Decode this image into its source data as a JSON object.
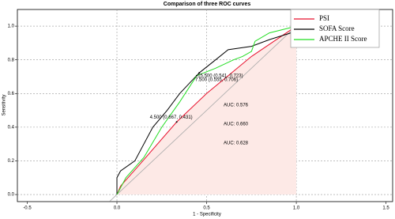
{
  "chart_data": {
    "type": "line",
    "title": "Comparison of three ROC curves",
    "x_label": "1 - Specificity",
    "y_label": "Sensitivity",
    "xlim": [
      -0.555,
      1.537
    ],
    "ylim": [
      -0.042,
      1.099
    ],
    "xticks": [
      -0.5,
      {
        "value": 0,
        "label": "0.0"
      },
      0.5,
      {
        "value": 1,
        "label": "1.0"
      },
      1.5
    ],
    "yticks": [
      {
        "value": 0,
        "label": "0.0"
      },
      0.2,
      0.4,
      0.6,
      0.8,
      {
        "value": 1,
        "label": "1.0"
      }
    ],
    "grid": true,
    "legend": "top-right",
    "series": [
      {
        "name": "PSI",
        "color": "#e8112d",
        "fill": "#fde9e6",
        "x": [
          0,
          0.02,
          0.12,
          0.333,
          0.5,
          0.75,
          1
        ],
        "values": [
          0,
          0.05,
          0.17,
          0.431,
          0.6,
          0.82,
          1
        ],
        "threshold": {
          "x": 0.333,
          "y": 0.431,
          "label": "4.500 (0.667, 0.431)"
        },
        "auc_label": "AUC: 0.576"
      },
      {
        "name": "SOFA Score",
        "color": "#000000",
        "x": [
          0,
          0,
          0.02,
          0.1,
          0.2,
          0.28,
          0.35,
          0.459,
          0.55,
          0.62,
          0.75,
          0.85,
          1,
          1
        ],
        "values": [
          0,
          0.1,
          0.14,
          0.2,
          0.4,
          0.5,
          0.6,
          0.723,
          0.8,
          0.86,
          0.88,
          0.92,
          0.97,
          1
        ],
        "threshold": {
          "x": 0.459,
          "y": 0.723,
          "label": "15.500 (0.541, 0.723)"
        },
        "auc_label": "AUC: 0.660"
      },
      {
        "name": "APCHE II Score",
        "color": "#22dd22",
        "x": [
          0,
          0.05,
          0.15,
          0.25,
          0.35,
          0.445,
          0.55,
          0.65,
          0.7,
          0.75,
          0.77,
          0.85,
          1
        ],
        "values": [
          0,
          0.1,
          0.22,
          0.4,
          0.55,
          0.706,
          0.75,
          0.8,
          0.82,
          0.85,
          0.91,
          0.96,
          1
        ],
        "threshold": {
          "x": 0.445,
          "y": 0.706,
          "label": "7.500 (0.555, 0.706)"
        },
        "auc_label": "AUC: 0.628"
      }
    ]
  }
}
